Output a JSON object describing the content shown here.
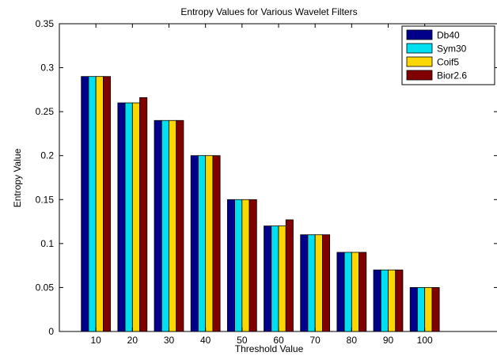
{
  "chart_data": {
    "type": "bar",
    "title": "Entropy Values for Various Wavelet Filters",
    "xlabel": "Threshold Value",
    "ylabel": "Entropy Value",
    "categories": [
      "10",
      "20",
      "30",
      "40",
      "50",
      "60",
      "70",
      "80",
      "90",
      "100"
    ],
    "xlim": [
      0,
      12
    ],
    "ylim": [
      0,
      0.35
    ],
    "yticks": [
      "0",
      "0.05",
      "0.1",
      "0.15",
      "0.2",
      "0.25",
      "0.3",
      "0.35"
    ],
    "grid": false,
    "legend_position": "top-right",
    "series": [
      {
        "name": "Db40",
        "color": "#00008B",
        "values": [
          0.29,
          0.26,
          0.24,
          0.2,
          0.15,
          0.12,
          0.11,
          0.09,
          0.07,
          0.05
        ]
      },
      {
        "name": "Sym30",
        "color": "#00E0F0",
        "values": [
          0.29,
          0.26,
          0.24,
          0.2,
          0.15,
          0.12,
          0.11,
          0.09,
          0.07,
          0.05
        ]
      },
      {
        "name": "Coif5",
        "color": "#FFD700",
        "values": [
          0.29,
          0.26,
          0.24,
          0.2,
          0.15,
          0.12,
          0.11,
          0.09,
          0.07,
          0.05
        ]
      },
      {
        "name": "Bior2.6",
        "color": "#800000",
        "values": [
          0.29,
          0.266,
          0.24,
          0.2,
          0.15,
          0.127,
          0.11,
          0.09,
          0.07,
          0.05
        ]
      }
    ]
  }
}
